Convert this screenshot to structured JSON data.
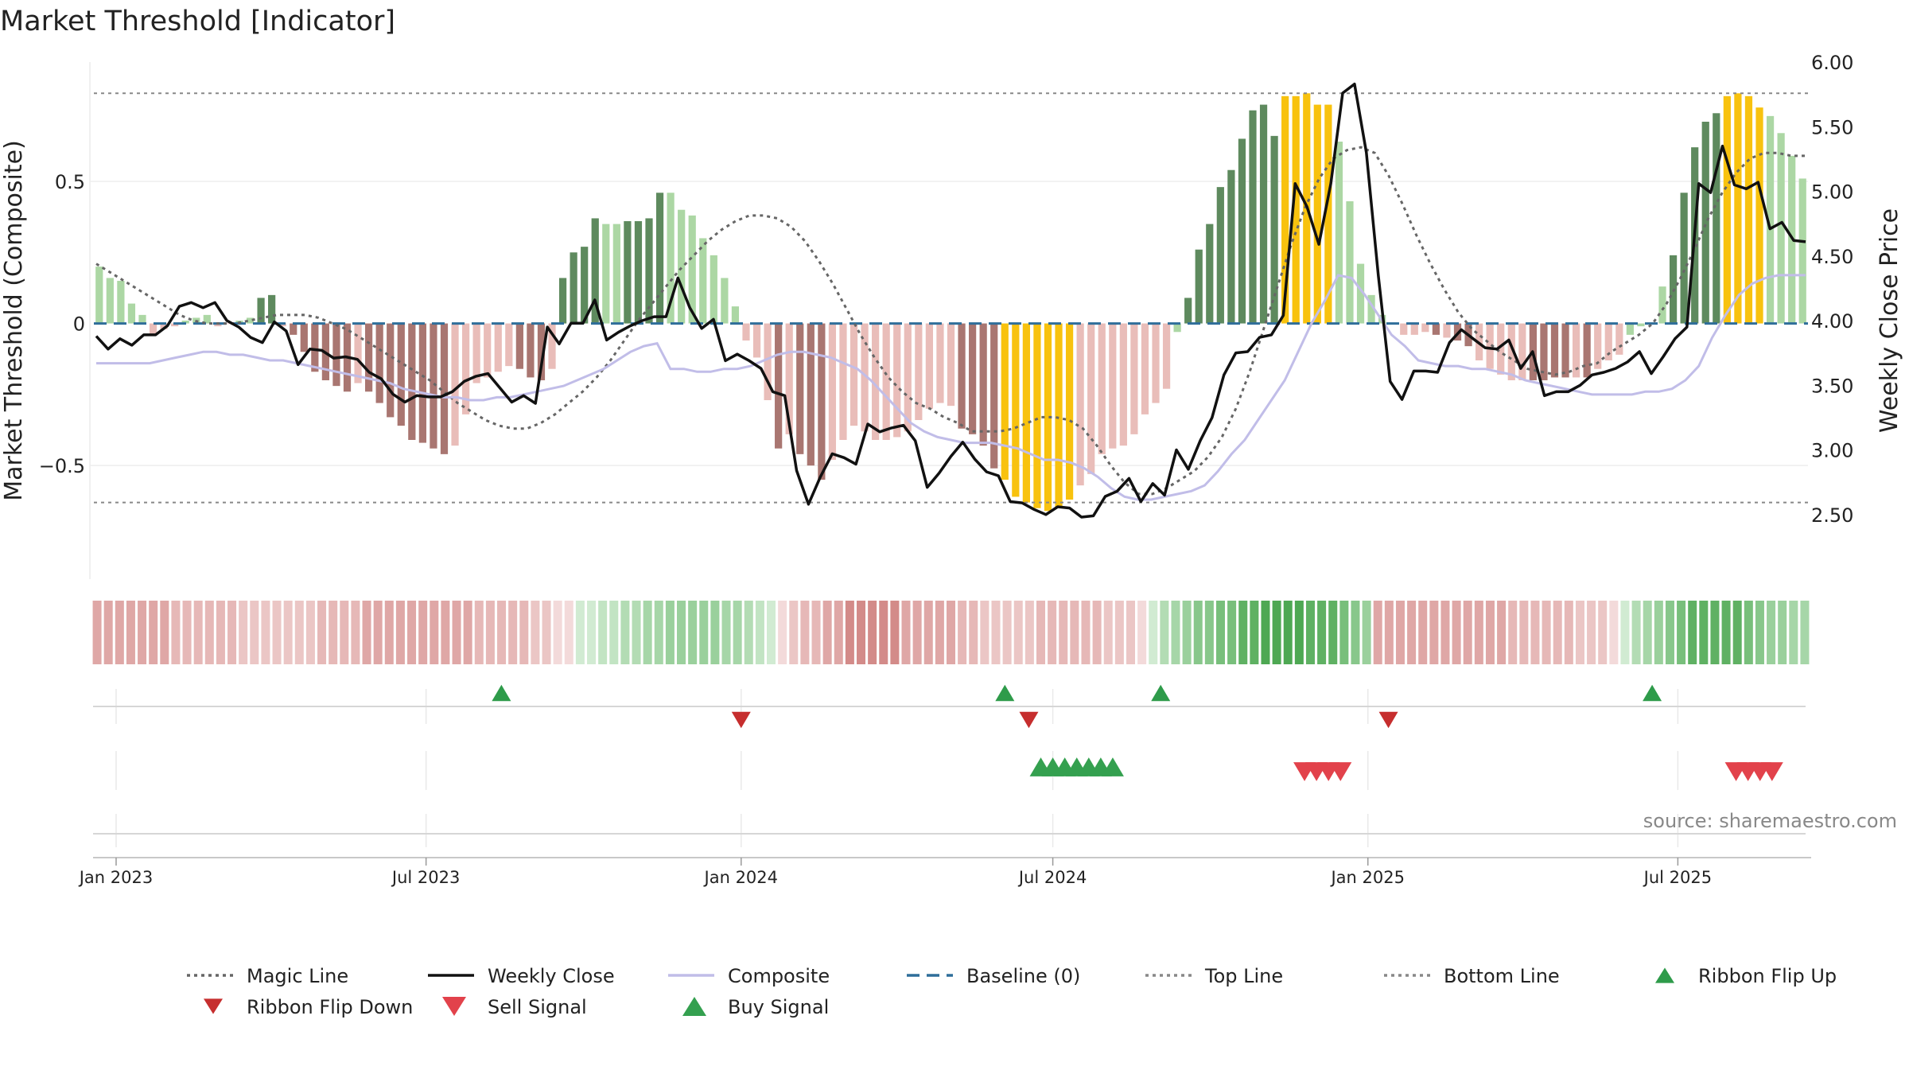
{
  "title": "Market Threshold [Indicator]",
  "source": "source: sharemaestro.com",
  "colors": {
    "strong_up": "#5e8a5e",
    "weak_up": "#acd7a4",
    "strong_down": "#a97671",
    "weak_down": "#e9bdb9",
    "extreme": "#f8c20e",
    "weekly_close": "#111111",
    "composite": "#c1bde8",
    "magic_line": "#666666",
    "baseline": "#2f6e9a",
    "buy": "#2e9b4a",
    "sell": "#d8393f"
  },
  "chart_data": {
    "type": "bar",
    "title": "Market Threshold [Indicator]",
    "ylabel_left": "Market Threshold (Composite)",
    "ylabel_right": "Weekly Close Price",
    "x_ticks": [
      "Jan 2023",
      "Jul 2023",
      "Jan 2024",
      "Jul 2024",
      "Jan 2025",
      "Jul 2025"
    ],
    "y_ticks_left": [
      "0.5",
      "0",
      "−0.5"
    ],
    "y_ticks_right": [
      "6.00",
      "5.50",
      "5.00",
      "4.50",
      "4.00",
      "3.50",
      "3.00",
      "2.50"
    ],
    "ylim_left": [
      -0.9,
      0.92
    ],
    "ylim_right": [
      2.0,
      6.0
    ],
    "top_line": 0.81,
    "bottom_line": -0.63,
    "x_start": "2022-12-19",
    "x_end": "2025-09-15",
    "bar_values": [
      0.2,
      0.16,
      0.15,
      0.07,
      0.03,
      -0.04,
      -0.02,
      -0.01,
      0.01,
      0.02,
      0.03,
      -0.01,
      0.0,
      0.01,
      0.02,
      0.09,
      0.1,
      -0.01,
      -0.04,
      -0.1,
      -0.17,
      -0.2,
      -0.22,
      -0.24,
      -0.21,
      -0.24,
      -0.28,
      -0.33,
      -0.36,
      -0.41,
      -0.42,
      -0.44,
      -0.46,
      -0.43,
      -0.32,
      -0.21,
      -0.19,
      -0.17,
      -0.15,
      -0.16,
      -0.19,
      -0.2,
      -0.16,
      0.16,
      0.25,
      0.27,
      0.37,
      0.35,
      0.35,
      0.36,
      0.36,
      0.37,
      0.46,
      0.46,
      0.4,
      0.38,
      0.3,
      0.24,
      0.16,
      0.06,
      -0.06,
      -0.12,
      -0.27,
      -0.44,
      -0.39,
      -0.46,
      -0.5,
      -0.55,
      -0.48,
      -0.41,
      -0.36,
      -0.38,
      -0.41,
      -0.41,
      -0.4,
      -0.38,
      -0.34,
      -0.3,
      -0.28,
      -0.29,
      -0.37,
      -0.39,
      -0.43,
      -0.51,
      -0.55,
      -0.61,
      -0.63,
      -0.65,
      -0.66,
      -0.65,
      -0.62,
      -0.57,
      -0.53,
      -0.46,
      -0.44,
      -0.43,
      -0.39,
      -0.32,
      -0.28,
      -0.23,
      -0.03,
      0.09,
      0.26,
      0.35,
      0.48,
      0.54,
      0.65,
      0.75,
      0.77,
      0.66,
      0.8,
      0.8,
      0.81,
      0.77,
      0.77,
      0.64,
      0.43,
      0.21,
      0.1,
      0.03,
      0.0,
      -0.04,
      -0.04,
      -0.03,
      -0.04,
      -0.05,
      -0.06,
      -0.08,
      -0.13,
      -0.16,
      -0.18,
      -0.2,
      -0.2,
      -0.2,
      -0.2,
      -0.19,
      -0.19,
      -0.19,
      -0.19,
      -0.16,
      -0.13,
      -0.11,
      -0.04,
      -0.01,
      0.0,
      0.13,
      0.24,
      0.46,
      0.62,
      0.71,
      0.74,
      0.8,
      0.81,
      0.8,
      0.76,
      0.73,
      0.67,
      0.59,
      0.51
    ],
    "bar_color_classes": [
      "weak_up",
      "weak_up",
      "weak_up",
      "weak_up",
      "weak_up",
      "weak_down",
      "weak_down",
      "weak_down",
      "weak_up",
      "weak_up",
      "weak_up",
      "weak_down",
      "weak_down",
      "weak_up",
      "weak_up",
      "strong_up",
      "strong_up",
      "weak_down",
      "strong_down",
      "strong_down",
      "strong_down",
      "strong_down",
      "strong_down",
      "strong_down",
      "weak_down",
      "strong_down",
      "strong_down",
      "strong_down",
      "strong_down",
      "strong_down",
      "strong_down",
      "strong_down",
      "strong_down",
      "weak_down",
      "weak_down",
      "weak_down",
      "weak_down",
      "weak_down",
      "weak_down",
      "strong_down",
      "strong_down",
      "strong_down",
      "weak_down",
      "strong_up",
      "strong_up",
      "strong_up",
      "strong_up",
      "weak_up",
      "weak_up",
      "strong_up",
      "strong_up",
      "strong_up",
      "strong_up",
      "weak_up",
      "weak_up",
      "weak_up",
      "weak_up",
      "weak_up",
      "weak_up",
      "weak_up",
      "weak_down",
      "weak_down",
      "weak_down",
      "strong_down",
      "weak_down",
      "strong_down",
      "strong_down",
      "strong_down",
      "weak_down",
      "weak_down",
      "weak_down",
      "weak_down",
      "weak_down",
      "weak_down",
      "weak_down",
      "weak_down",
      "weak_down",
      "weak_down",
      "weak_down",
      "weak_down",
      "strong_down",
      "strong_down",
      "strong_down",
      "strong_down",
      "extreme",
      "extreme",
      "extreme",
      "extreme",
      "extreme",
      "extreme",
      "extreme",
      "weak_down",
      "weak_down",
      "weak_down",
      "weak_down",
      "weak_down",
      "weak_down",
      "weak_down",
      "weak_down",
      "weak_down",
      "weak_up",
      "strong_up",
      "strong_up",
      "strong_up",
      "strong_up",
      "strong_up",
      "strong_up",
      "strong_up",
      "strong_up",
      "strong_up",
      "extreme",
      "extreme",
      "extreme",
      "extreme",
      "extreme",
      "weak_up",
      "weak_up",
      "weak_up",
      "weak_up",
      "weak_up",
      "weak_up",
      "weak_down",
      "weak_down",
      "weak_down",
      "strong_down",
      "weak_down",
      "strong_down",
      "strong_down",
      "weak_down",
      "weak_down",
      "weak_down",
      "weak_down",
      "weak_down",
      "strong_down",
      "strong_down",
      "strong_down",
      "strong_down",
      "weak_down",
      "strong_down",
      "weak_down",
      "weak_down",
      "weak_down",
      "weak_up",
      "weak_up",
      "weak_up",
      "weak_up",
      "strong_up",
      "strong_up",
      "strong_up",
      "strong_up",
      "strong_up",
      "extreme",
      "extreme",
      "extreme",
      "extreme",
      "weak_up",
      "weak_up",
      "weak_up",
      "weak_up"
    ],
    "ribbon_colors": [
      "#dfa7a6",
      "#dfa7a6",
      "#dfa7a6",
      "#dfa7a6",
      "#dfa7a6",
      "#dfa7a6",
      "#dfa7a6",
      "#e6b8b7",
      "#e6b8b7",
      "#e6b8b7",
      "#e6b8b7",
      "#e6b8b7",
      "#e6b8b7",
      "#ebc6c5",
      "#ebc6c5",
      "#ebc6c5",
      "#ebc6c5",
      "#ebc6c5",
      "#ebc6c5",
      "#ebc6c5",
      "#e6b8b7",
      "#e6b8b7",
      "#e6b8b7",
      "#e6b8b7",
      "#dfa7a6",
      "#dfa7a6",
      "#dfa7a6",
      "#dfa7a6",
      "#dfa7a6",
      "#dfa7a6",
      "#dfa7a6",
      "#dfa7a6",
      "#dfa7a6",
      "#dfa7a6",
      "#e6b8b7",
      "#e6b8b7",
      "#e6b8b7",
      "#e6b8b7",
      "#e6b8b7",
      "#ebc6c5",
      "#ebc6c5",
      "#f3dada",
      "#f3dada",
      "#d1ebd2",
      "#d1ebd2",
      "#c2e4c3",
      "#c2e4c3",
      "#b3dcb4",
      "#b3dcb4",
      "#a6d6a8",
      "#a6d6a8",
      "#9ad09c",
      "#9ad09c",
      "#9ad09c",
      "#9ad09c",
      "#9ad09c",
      "#a6d6a8",
      "#a6d6a8",
      "#b3dcb4",
      "#c2e4c3",
      "#d1ebd2",
      "#f3dada",
      "#ebc6c5",
      "#e6b8b7",
      "#e6b8b7",
      "#dfa7a6",
      "#dfa7a6",
      "#d38b89",
      "#d38b89",
      "#d38b89",
      "#d38b89",
      "#d38b89",
      "#dfa7a6",
      "#dfa7a6",
      "#dfa7a6",
      "#dfa7a6",
      "#dfa7a6",
      "#e6b8b7",
      "#e6b8b7",
      "#ebc6c5",
      "#ebc6c5",
      "#ebc6c5",
      "#ebc6c5",
      "#ebc6c5",
      "#e6b8b7",
      "#e6b8b7",
      "#e6b8b7",
      "#e6b8b7",
      "#e6b8b7",
      "#e6b8b7",
      "#ebc6c5",
      "#ebc6c5",
      "#ebc6c5",
      "#f3dada",
      "#d1ebd2",
      "#b3dcb4",
      "#a6d6a8",
      "#9ad09c",
      "#88c78b",
      "#88c78b",
      "#78bf7b",
      "#78bf7b",
      "#5fb163",
      "#5fb163",
      "#4ea853",
      "#4ea853",
      "#4ea853",
      "#4ea853",
      "#5fb163",
      "#5fb163",
      "#5fb163",
      "#78bf7b",
      "#88c78b",
      "#9ad09c",
      "#dfa7a6",
      "#dfa7a6",
      "#dfa7a6",
      "#dfa7a6",
      "#dfa7a6",
      "#dfa7a6",
      "#dfa7a6",
      "#dfa7a6",
      "#dfa7a6",
      "#dfa7a6",
      "#dfa7a6",
      "#dfa7a6",
      "#e6b8b7",
      "#e6b8b7",
      "#e6b8b7",
      "#e6b8b7",
      "#e6b8b7",
      "#e6b8b7",
      "#ebc6c5",
      "#ebc6c5",
      "#ebc6c5",
      "#f3dada",
      "#d1ebd2",
      "#b3dcb4",
      "#a6d6a8",
      "#9ad09c",
      "#88c78b",
      "#78bf7b",
      "#5fb163",
      "#5fb163",
      "#5fb163",
      "#5fb163",
      "#5fb163",
      "#78bf7b",
      "#88c78b",
      "#9ad09c",
      "#9ad09c",
      "#a6d6a8",
      "#a6d6a8"
    ],
    "weekly_close": [
      3.88,
      3.78,
      3.86,
      3.81,
      3.89,
      3.89,
      3.96,
      4.11,
      4.14,
      4.1,
      4.14,
      4.0,
      3.95,
      3.87,
      3.83,
      3.99,
      3.92,
      3.66,
      3.78,
      3.77,
      3.71,
      3.72,
      3.7,
      3.6,
      3.55,
      3.43,
      3.37,
      3.42,
      3.41,
      3.41,
      3.45,
      3.53,
      3.57,
      3.59,
      3.48,
      3.37,
      3.42,
      3.36,
      3.95,
      3.82,
      3.98,
      3.98,
      4.16,
      3.85,
      3.91,
      3.96,
      4.0,
      4.03,
      4.03,
      4.33,
      4.1,
      3.94,
      4.01,
      3.69,
      3.74,
      3.69,
      3.63,
      3.45,
      3.42,
      2.84,
      2.58,
      2.79,
      2.97,
      2.94,
      2.89,
      3.2,
      3.14,
      3.17,
      3.19,
      3.07,
      2.71,
      2.82,
      2.95,
      3.06,
      2.93,
      2.83,
      2.8,
      2.6,
      2.59,
      2.54,
      2.5,
      2.56,
      2.55,
      2.48,
      2.49,
      2.64,
      2.68,
      2.78,
      2.6,
      2.74,
      2.65,
      3.0,
      2.85,
      3.07,
      3.25,
      3.58,
      3.75,
      3.76,
      3.87,
      3.89,
      4.04,
      5.06,
      4.88,
      4.59,
      5.06,
      5.76,
      5.83,
      5.3,
      4.35,
      3.53,
      3.39,
      3.61,
      3.61,
      3.6,
      3.83,
      3.93,
      3.86,
      3.79,
      3.78,
      3.85,
      3.63,
      3.76,
      3.42,
      3.45,
      3.45,
      3.5,
      3.58,
      3.6,
      3.63,
      3.68,
      3.76,
      3.59,
      3.72,
      3.86,
      3.95,
      5.06,
      4.99,
      5.35,
      5.05,
      5.02,
      5.07,
      4.71,
      4.76,
      4.62,
      4.61
    ],
    "composite": [
      -0.14,
      -0.14,
      -0.14,
      -0.14,
      -0.14,
      -0.13,
      -0.12,
      -0.11,
      -0.1,
      -0.1,
      -0.11,
      -0.11,
      -0.12,
      -0.13,
      -0.13,
      -0.14,
      -0.15,
      -0.16,
      -0.17,
      -0.18,
      -0.19,
      -0.2,
      -0.21,
      -0.23,
      -0.24,
      -0.25,
      -0.26,
      -0.26,
      -0.27,
      -0.27,
      -0.26,
      -0.26,
      -0.25,
      -0.24,
      -0.23,
      -0.22,
      -0.2,
      -0.18,
      -0.16,
      -0.13,
      -0.1,
      -0.08,
      -0.07,
      -0.16,
      -0.16,
      -0.17,
      -0.17,
      -0.16,
      -0.16,
      -0.15,
      -0.13,
      -0.11,
      -0.1,
      -0.1,
      -0.11,
      -0.12,
      -0.14,
      -0.16,
      -0.2,
      -0.25,
      -0.3,
      -0.35,
      -0.38,
      -0.4,
      -0.41,
      -0.42,
      -0.42,
      -0.42,
      -0.43,
      -0.44,
      -0.46,
      -0.48,
      -0.48,
      -0.49,
      -0.51,
      -0.54,
      -0.58,
      -0.61,
      -0.62,
      -0.62,
      -0.61,
      -0.6,
      -0.59,
      -0.57,
      -0.52,
      -0.46,
      -0.41,
      -0.34,
      -0.27,
      -0.2,
      -0.1,
      0.0,
      0.08,
      0.17,
      0.16,
      0.1,
      0.03,
      -0.04,
      -0.08,
      -0.13,
      -0.14,
      -0.15,
      -0.15,
      -0.16,
      -0.16,
      -0.17,
      -0.18,
      -0.2,
      -0.21,
      -0.22,
      -0.23,
      -0.24,
      -0.25,
      -0.25,
      -0.25,
      -0.25,
      -0.24,
      -0.24,
      -0.23,
      -0.2,
      -0.15,
      -0.05,
      0.03,
      0.1,
      0.14,
      0.16,
      0.17,
      0.17,
      0.17
    ],
    "magic_line": [
      0.21,
      0.18,
      0.15,
      0.12,
      0.09,
      0.06,
      0.03,
      0.01,
      0.0,
      0.0,
      0.0,
      0.01,
      0.02,
      0.03,
      0.03,
      0.03,
      0.02,
      0.0,
      -0.02,
      -0.05,
      -0.08,
      -0.11,
      -0.14,
      -0.17,
      -0.2,
      -0.24,
      -0.28,
      -0.31,
      -0.34,
      -0.36,
      -0.37,
      -0.37,
      -0.35,
      -0.32,
      -0.28,
      -0.24,
      -0.19,
      -0.13,
      -0.06,
      0.01,
      0.07,
      0.13,
      0.19,
      0.24,
      0.29,
      0.33,
      0.36,
      0.38,
      0.38,
      0.37,
      0.34,
      0.29,
      0.22,
      0.14,
      0.05,
      -0.04,
      -0.12,
      -0.19,
      -0.24,
      -0.28,
      -0.3,
      -0.33,
      -0.35,
      -0.38,
      -0.38,
      -0.38,
      -0.37,
      -0.35,
      -0.33,
      -0.33,
      -0.34,
      -0.37,
      -0.43,
      -0.5,
      -0.56,
      -0.6,
      -0.6,
      -0.58,
      -0.55,
      -0.52,
      -0.47,
      -0.4,
      -0.3,
      -0.17,
      -0.02,
      0.13,
      0.28,
      0.41,
      0.51,
      0.58,
      0.61,
      0.62,
      0.6,
      0.52,
      0.42,
      0.31,
      0.21,
      0.12,
      0.04,
      -0.02,
      -0.06,
      -0.1,
      -0.13,
      -0.16,
      -0.17,
      -0.18,
      -0.17,
      -0.15,
      -0.14,
      -0.1,
      -0.07,
      -0.04,
      0.0,
      0.07,
      0.16,
      0.26,
      0.37,
      0.46,
      0.53,
      0.58,
      0.6,
      0.6,
      0.59,
      0.59
    ],
    "ribbon_flip_up": [
      "2023-08-14",
      "2024-06-03",
      "2024-09-02",
      "2025-06-16"
    ],
    "ribbon_flip_down": [
      "2024-01-01",
      "2024-06-17",
      "2025-01-13"
    ],
    "buy_signals": [
      "2024-06-24",
      "2024-07-01",
      "2024-07-08",
      "2024-07-15",
      "2024-07-22",
      "2024-07-29",
      "2024-08-05"
    ],
    "sell_signals": [
      "2024-11-25",
      "2024-12-02",
      "2024-12-09",
      "2024-12-16",
      "2025-08-04",
      "2025-08-11",
      "2025-08-18",
      "2025-08-25"
    ]
  },
  "legend": [
    {
      "label": "Magic Line",
      "kind": "dotted-line",
      "color": "#666666"
    },
    {
      "label": "Weekly Close",
      "kind": "solid-line",
      "color": "#111111"
    },
    {
      "label": "Composite",
      "kind": "solid-line",
      "color": "#c1bde8"
    },
    {
      "label": "Baseline (0)",
      "kind": "dashed-line",
      "color": "#2f6e9a"
    },
    {
      "label": "Top Line",
      "kind": "dotted-line",
      "color": "#888888"
    },
    {
      "label": "Bottom Line",
      "kind": "dotted-line",
      "color": "#888888"
    },
    {
      "label": "Ribbon Flip Up",
      "kind": "triangle-up",
      "color": "#2e9b4a"
    },
    {
      "label": "Ribbon Flip Down",
      "kind": "triangle-down",
      "color": "#c62e2e"
    },
    {
      "label": "Sell Signal",
      "kind": "triangle-down",
      "color": "#e2424b"
    },
    {
      "label": "Buy Signal",
      "kind": "triangle-up",
      "color": "#34a04f"
    }
  ]
}
